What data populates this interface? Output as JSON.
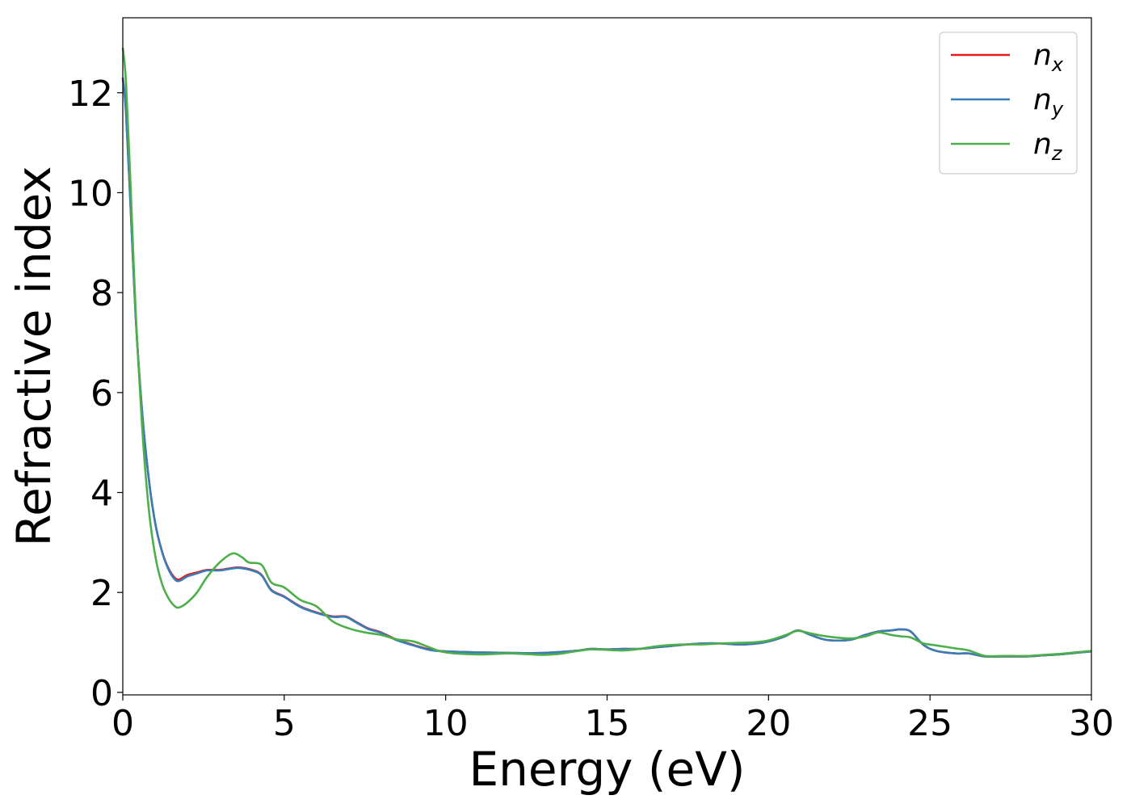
{
  "chart_data": {
    "type": "line",
    "xlabel": "Energy (eV)",
    "ylabel": "Refractive index",
    "xlim": [
      0,
      30
    ],
    "ylim": [
      -0.05,
      13.5
    ],
    "xticks": [
      0,
      5,
      10,
      15,
      20,
      25,
      30
    ],
    "yticks": [
      0,
      2,
      4,
      6,
      8,
      10,
      12
    ],
    "grid": false,
    "legend_position": "top-right",
    "series": [
      {
        "name": "n_x",
        "legend_base": "n",
        "legend_sub": "x",
        "color": "#e41a1c",
        "points": [
          [
            0,
            12.3
          ],
          [
            0.1,
            11.6
          ],
          [
            0.25,
            9.6
          ],
          [
            0.4,
            7.5
          ],
          [
            0.6,
            5.6
          ],
          [
            0.8,
            4.3
          ],
          [
            1.0,
            3.4
          ],
          [
            1.2,
            2.85
          ],
          [
            1.4,
            2.5
          ],
          [
            1.6,
            2.3
          ],
          [
            1.75,
            2.26
          ],
          [
            2.0,
            2.35
          ],
          [
            2.3,
            2.4
          ],
          [
            2.6,
            2.45
          ],
          [
            3.0,
            2.45
          ],
          [
            3.3,
            2.48
          ],
          [
            3.6,
            2.5
          ],
          [
            4.0,
            2.45
          ],
          [
            4.3,
            2.35
          ],
          [
            4.6,
            2.05
          ],
          [
            5.0,
            1.92
          ],
          [
            5.5,
            1.72
          ],
          [
            6.0,
            1.6
          ],
          [
            6.5,
            1.52
          ],
          [
            6.9,
            1.52
          ],
          [
            7.2,
            1.42
          ],
          [
            7.6,
            1.28
          ],
          [
            8.0,
            1.2
          ],
          [
            8.5,
            1.05
          ],
          [
            9.0,
            0.95
          ],
          [
            9.5,
            0.86
          ],
          [
            10.0,
            0.82
          ],
          [
            11.0,
            0.8
          ],
          [
            12.0,
            0.79
          ],
          [
            13.0,
            0.79
          ],
          [
            14.0,
            0.83
          ],
          [
            14.5,
            0.87
          ],
          [
            15.0,
            0.86
          ],
          [
            15.5,
            0.87
          ],
          [
            16.0,
            0.87
          ],
          [
            16.5,
            0.9
          ],
          [
            17.0,
            0.93
          ],
          [
            17.5,
            0.96
          ],
          [
            18.0,
            0.98
          ],
          [
            18.5,
            0.98
          ],
          [
            19.0,
            0.96
          ],
          [
            19.5,
            0.97
          ],
          [
            20.0,
            1.02
          ],
          [
            20.5,
            1.12
          ],
          [
            20.9,
            1.24
          ],
          [
            21.3,
            1.15
          ],
          [
            21.8,
            1.05
          ],
          [
            22.5,
            1.05
          ],
          [
            23.0,
            1.15
          ],
          [
            23.4,
            1.22
          ],
          [
            23.8,
            1.24
          ],
          [
            24.1,
            1.26
          ],
          [
            24.4,
            1.22
          ],
          [
            24.8,
            0.95
          ],
          [
            25.2,
            0.83
          ],
          [
            25.8,
            0.78
          ],
          [
            26.2,
            0.78
          ],
          [
            26.7,
            0.72
          ],
          [
            27.2,
            0.72
          ],
          [
            28.0,
            0.72
          ],
          [
            28.5,
            0.74
          ],
          [
            29.0,
            0.76
          ],
          [
            29.5,
            0.79
          ],
          [
            30.0,
            0.82
          ]
        ]
      },
      {
        "name": "n_y",
        "legend_base": "n",
        "legend_sub": "y",
        "color": "#377eb8",
        "points": [
          [
            0,
            12.3
          ],
          [
            0.1,
            11.6
          ],
          [
            0.25,
            9.6
          ],
          [
            0.4,
            7.5
          ],
          [
            0.6,
            5.6
          ],
          [
            0.8,
            4.3
          ],
          [
            1.0,
            3.4
          ],
          [
            1.2,
            2.85
          ],
          [
            1.4,
            2.48
          ],
          [
            1.6,
            2.27
          ],
          [
            1.75,
            2.23
          ],
          [
            2.0,
            2.32
          ],
          [
            2.3,
            2.38
          ],
          [
            2.6,
            2.44
          ],
          [
            3.0,
            2.44
          ],
          [
            3.3,
            2.47
          ],
          [
            3.6,
            2.49
          ],
          [
            4.0,
            2.44
          ],
          [
            4.3,
            2.34
          ],
          [
            4.6,
            2.04
          ],
          [
            5.0,
            1.91
          ],
          [
            5.5,
            1.71
          ],
          [
            6.0,
            1.59
          ],
          [
            6.5,
            1.51
          ],
          [
            6.9,
            1.51
          ],
          [
            7.2,
            1.41
          ],
          [
            7.6,
            1.27
          ],
          [
            8.0,
            1.19
          ],
          [
            8.5,
            1.04
          ],
          [
            9.0,
            0.94
          ],
          [
            9.5,
            0.85
          ],
          [
            10.0,
            0.82
          ],
          [
            11.0,
            0.8
          ],
          [
            12.0,
            0.79
          ],
          [
            13.0,
            0.79
          ],
          [
            14.0,
            0.83
          ],
          [
            14.5,
            0.87
          ],
          [
            15.0,
            0.86
          ],
          [
            15.5,
            0.87
          ],
          [
            16.0,
            0.87
          ],
          [
            16.5,
            0.9
          ],
          [
            17.0,
            0.93
          ],
          [
            17.5,
            0.96
          ],
          [
            18.0,
            0.98
          ],
          [
            18.5,
            0.98
          ],
          [
            19.0,
            0.96
          ],
          [
            19.5,
            0.97
          ],
          [
            20.0,
            1.02
          ],
          [
            20.5,
            1.12
          ],
          [
            20.9,
            1.24
          ],
          [
            21.3,
            1.15
          ],
          [
            21.8,
            1.05
          ],
          [
            22.5,
            1.05
          ],
          [
            23.0,
            1.15
          ],
          [
            23.4,
            1.22
          ],
          [
            23.8,
            1.24
          ],
          [
            24.1,
            1.26
          ],
          [
            24.4,
            1.22
          ],
          [
            24.8,
            0.95
          ],
          [
            25.2,
            0.83
          ],
          [
            25.8,
            0.78
          ],
          [
            26.2,
            0.78
          ],
          [
            26.7,
            0.72
          ],
          [
            27.2,
            0.72
          ],
          [
            28.0,
            0.72
          ],
          [
            28.5,
            0.74
          ],
          [
            29.0,
            0.76
          ],
          [
            29.5,
            0.79
          ],
          [
            30.0,
            0.82
          ]
        ]
      },
      {
        "name": "n_z",
        "legend_base": "n",
        "legend_sub": "z",
        "color": "#4daf4a",
        "points": [
          [
            0,
            12.9
          ],
          [
            0.1,
            12.2
          ],
          [
            0.25,
            10.0
          ],
          [
            0.4,
            7.6
          ],
          [
            0.6,
            5.3
          ],
          [
            0.8,
            3.7
          ],
          [
            1.0,
            2.75
          ],
          [
            1.2,
            2.2
          ],
          [
            1.4,
            1.9
          ],
          [
            1.6,
            1.73
          ],
          [
            1.75,
            1.7
          ],
          [
            2.0,
            1.8
          ],
          [
            2.3,
            2.0
          ],
          [
            2.6,
            2.3
          ],
          [
            3.0,
            2.6
          ],
          [
            3.4,
            2.78
          ],
          [
            3.7,
            2.7
          ],
          [
            3.9,
            2.6
          ],
          [
            4.3,
            2.55
          ],
          [
            4.6,
            2.2
          ],
          [
            5.0,
            2.1
          ],
          [
            5.5,
            1.85
          ],
          [
            6.0,
            1.72
          ],
          [
            6.5,
            1.42
          ],
          [
            7.0,
            1.28
          ],
          [
            7.5,
            1.2
          ],
          [
            8.0,
            1.15
          ],
          [
            8.5,
            1.06
          ],
          [
            9.0,
            1.02
          ],
          [
            9.5,
            0.9
          ],
          [
            10.0,
            0.8
          ],
          [
            11.0,
            0.76
          ],
          [
            12.0,
            0.78
          ],
          [
            13.0,
            0.75
          ],
          [
            13.5,
            0.77
          ],
          [
            14.0,
            0.82
          ],
          [
            14.5,
            0.86
          ],
          [
            15.0,
            0.85
          ],
          [
            15.5,
            0.84
          ],
          [
            16.0,
            0.87
          ],
          [
            16.5,
            0.92
          ],
          [
            17.0,
            0.95
          ],
          [
            17.5,
            0.96
          ],
          [
            18.0,
            0.96
          ],
          [
            18.5,
            0.98
          ],
          [
            19.0,
            0.99
          ],
          [
            19.5,
            1.0
          ],
          [
            20.0,
            1.04
          ],
          [
            20.5,
            1.14
          ],
          [
            20.9,
            1.23
          ],
          [
            21.3,
            1.18
          ],
          [
            21.8,
            1.12
          ],
          [
            22.5,
            1.08
          ],
          [
            23.0,
            1.12
          ],
          [
            23.4,
            1.2
          ],
          [
            23.8,
            1.15
          ],
          [
            24.1,
            1.12
          ],
          [
            24.4,
            1.1
          ],
          [
            24.8,
            0.98
          ],
          [
            25.2,
            0.94
          ],
          [
            25.8,
            0.88
          ],
          [
            26.2,
            0.84
          ],
          [
            26.7,
            0.73
          ],
          [
            27.2,
            0.73
          ],
          [
            28.0,
            0.73
          ],
          [
            28.5,
            0.75
          ],
          [
            29.0,
            0.77
          ],
          [
            29.5,
            0.8
          ],
          [
            30.0,
            0.83
          ]
        ]
      }
    ]
  }
}
